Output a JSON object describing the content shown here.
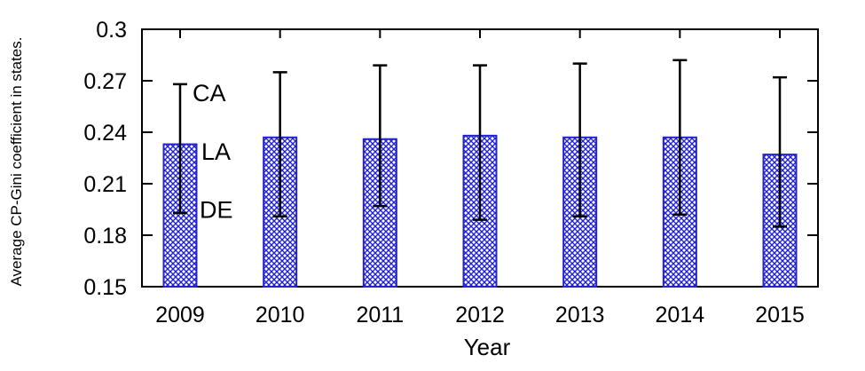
{
  "chart_data": {
    "type": "bar",
    "title": "",
    "xlabel": "Year",
    "ylabel": "Average CP-Gini coefficient in states.",
    "categories": [
      "2009",
      "2010",
      "2011",
      "2012",
      "2013",
      "2014",
      "2015"
    ],
    "series": [
      {
        "name": "Average CP-Gini coefficient",
        "values": [
          0.233,
          0.237,
          0.236,
          0.238,
          0.237,
          0.237,
          0.227
        ],
        "error_high": [
          0.268,
          0.275,
          0.279,
          0.279,
          0.28,
          0.282,
          0.272
        ],
        "error_low": [
          0.193,
          0.191,
          0.197,
          0.189,
          0.191,
          0.192,
          0.185
        ]
      }
    ],
    "annotations": [
      {
        "label": "CA",
        "anchor_category": "2009",
        "y": 0.263,
        "dx": 14
      },
      {
        "label": "LA",
        "anchor_category": "2009",
        "y": 0.229,
        "dx": 24
      },
      {
        "label": "DE",
        "anchor_category": "2009",
        "y": 0.195,
        "dx": 22
      }
    ],
    "ylim": [
      0.15,
      0.3
    ],
    "ytick_values": [
      0.3,
      0.27,
      0.24,
      0.21,
      0.18,
      0.15
    ],
    "ytick_labels": [
      "0.3",
      "0.27",
      "0.24",
      "0.21",
      "0.18",
      "0.15"
    ],
    "grid": false,
    "legend": "none",
    "colors": {
      "bar": "#2323cd",
      "error_bar": "#000000",
      "axis": "#000000",
      "background": "#ffffff"
    },
    "bar_fill_style": "crosshatch"
  }
}
